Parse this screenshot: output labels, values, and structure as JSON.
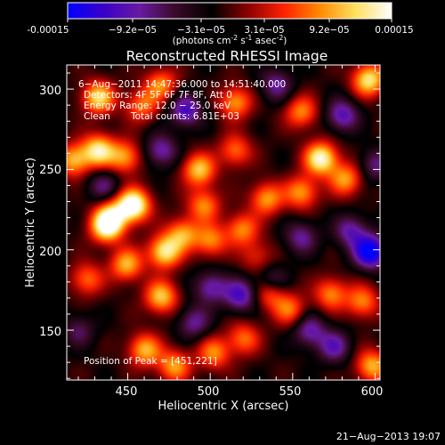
{
  "colorbar": {
    "tick_labels": [
      "-0.00015",
      "−9.2e−05",
      "−3.1e−05",
      "3.1e−05",
      "9.2e−05",
      "0.00015"
    ],
    "units_prefix": "(photons cm",
    "units_exp1": "-2",
    "units_mid": " s",
    "units_exp2": "-1",
    "units_mid2": " asec",
    "units_exp3": "-2",
    "units_suffix": ")",
    "palette": [
      "#0000ff",
      "#3a00c8",
      "#6a1aa0",
      "#3a0a28",
      "#000000",
      "#8a0000",
      "#ff2000",
      "#ff8a00",
      "#ffe060",
      "#ffffff"
    ]
  },
  "image": {
    "title": "Reconstructed RHESSI Image",
    "time_range": "6−Aug−2011 14:47:36.000 to 14:51:40.000",
    "detectors": "Detectors: 4F 5F 6F 7F 8F, Att 0",
    "energy_range": "Energy Range: 12.0 − 25.0 keV",
    "algorithm": "Clean",
    "total_counts": "Total counts: 6.81E+03",
    "peak_position": "Position of Peak = [451,221]"
  },
  "axes": {
    "xlabel": "Heliocentric X (arcsec)",
    "ylabel": "Heliocentric Y (arcsec)",
    "x_ticks": [
      "450",
      "500",
      "550",
      "600"
    ],
    "y_ticks": [
      "150",
      "200",
      "250",
      "300"
    ],
    "x_range": [
      413,
      603
    ],
    "y_range": [
      119,
      315
    ]
  },
  "footer": {
    "timestamp": "21−Aug−2013 19:07"
  },
  "map_blobs": [
    {
      "x": 453,
      "y": 228,
      "v": 1.0
    },
    {
      "x": 437,
      "y": 215,
      "v": 0.85
    },
    {
      "x": 432,
      "y": 262,
      "v": 0.75
    },
    {
      "x": 417,
      "y": 256,
      "v": 0.6
    },
    {
      "x": 448,
      "y": 258,
      "v": 0.55
    },
    {
      "x": 458,
      "y": 290,
      "v": 0.45
    },
    {
      "x": 470,
      "y": 303,
      "v": 0.5
    },
    {
      "x": 432,
      "y": 295,
      "v": 0.7
    },
    {
      "x": 449,
      "y": 191,
      "v": 0.6
    },
    {
      "x": 425,
      "y": 182,
      "v": 0.45
    },
    {
      "x": 472,
      "y": 199,
      "v": 0.75
    },
    {
      "x": 483,
      "y": 210,
      "v": 0.55
    },
    {
      "x": 500,
      "y": 206,
      "v": 0.5
    },
    {
      "x": 493,
      "y": 250,
      "v": 0.65
    },
    {
      "x": 496,
      "y": 228,
      "v": 0.5
    },
    {
      "x": 515,
      "y": 292,
      "v": 0.55
    },
    {
      "x": 515,
      "y": 262,
      "v": 0.45
    },
    {
      "x": 519,
      "y": 213,
      "v": 0.5
    },
    {
      "x": 534,
      "y": 232,
      "v": 0.55
    },
    {
      "x": 555,
      "y": 236,
      "v": 0.55
    },
    {
      "x": 567,
      "y": 257,
      "v": 0.85
    },
    {
      "x": 582,
      "y": 244,
      "v": 0.55
    },
    {
      "x": 596,
      "y": 306,
      "v": 0.75
    },
    {
      "x": 555,
      "y": 286,
      "v": 0.5
    },
    {
      "x": 470,
      "y": 171,
      "v": 0.65
    },
    {
      "x": 460,
      "y": 138,
      "v": 0.6
    },
    {
      "x": 478,
      "y": 128,
      "v": 0.55
    },
    {
      "x": 502,
      "y": 136,
      "v": 0.5
    },
    {
      "x": 520,
      "y": 145,
      "v": 0.45
    },
    {
      "x": 536,
      "y": 174,
      "v": 0.55
    },
    {
      "x": 548,
      "y": 163,
      "v": 0.45
    },
    {
      "x": 573,
      "y": 173,
      "v": 0.5
    },
    {
      "x": 598,
      "y": 128,
      "v": 0.6
    },
    {
      "x": 592,
      "y": 168,
      "v": 0.5
    },
    {
      "x": 528,
      "y": 196,
      "v": 0.3
    },
    {
      "x": 440,
      "y": 222,
      "v": 0.45
    },
    {
      "x": 537,
      "y": 180,
      "v": -0.45
    },
    {
      "x": 518,
      "y": 172,
      "v": -0.55
    },
    {
      "x": 500,
      "y": 177,
      "v": -0.45
    },
    {
      "x": 555,
      "y": 208,
      "v": -0.4
    },
    {
      "x": 597,
      "y": 199,
      "v": -0.85
    },
    {
      "x": 585,
      "y": 212,
      "v": -0.45
    },
    {
      "x": 470,
      "y": 262,
      "v": -0.45
    },
    {
      "x": 485,
      "y": 287,
      "v": -0.55
    },
    {
      "x": 435,
      "y": 240,
      "v": -0.35
    },
    {
      "x": 575,
      "y": 140,
      "v": -0.45
    },
    {
      "x": 560,
      "y": 150,
      "v": -0.45
    },
    {
      "x": 540,
      "y": 303,
      "v": -0.4
    },
    {
      "x": 580,
      "y": 284,
      "v": -0.5
    },
    {
      "x": 490,
      "y": 155,
      "v": -0.4
    },
    {
      "x": 420,
      "y": 150,
      "v": -0.3
    },
    {
      "x": 600,
      "y": 253,
      "v": -0.35
    }
  ]
}
